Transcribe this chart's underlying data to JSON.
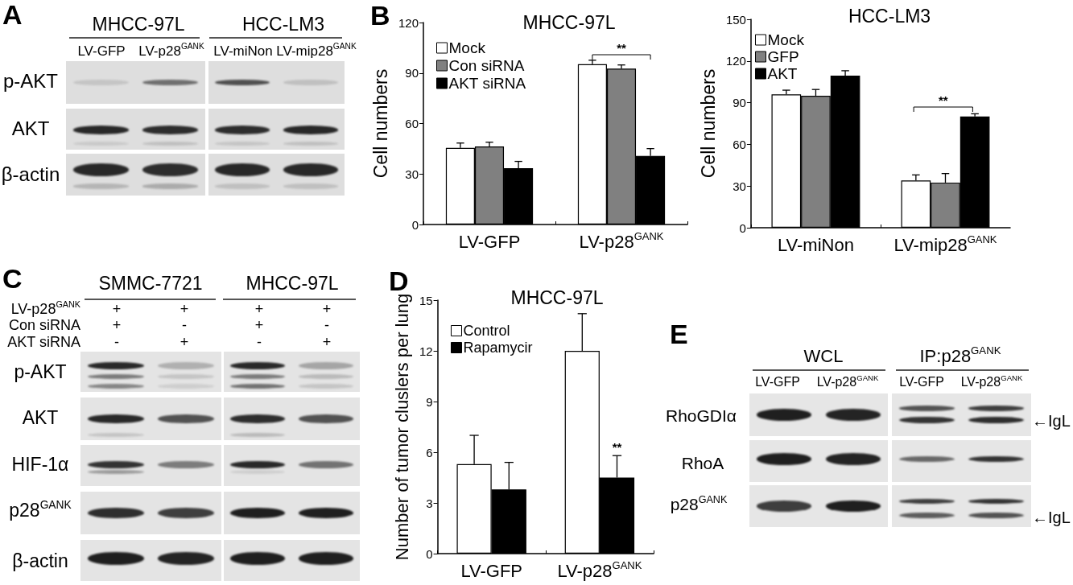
{
  "chart_data": [
    {
      "type": "other",
      "annotations": [
        "A",
        "MHCC-97L",
        "HCC-LM3",
        "LV-GFP",
        "LV-p28$^{GANK}$",
        "LV-miNon",
        "LV-mip28$^{GANK}$",
        "p-AKT",
        "AKT",
        "β-actin"
      ]
    },
    {
      "type": "bar",
      "title": "MHCC-97L",
      "ylabel": "Cell numbers",
      "categories": [
        "LV-GFP",
        "LV-p28$^{GANK}$"
      ],
      "ylim": [
        0,
        120
      ],
      "yticks": [
        0,
        30,
        60,
        90,
        120
      ],
      "legend": "top left",
      "series": [
        {
          "name": "Mock",
          "color": "#ffffff",
          "values": [
            45.5,
            95.2
          ],
          "errors": [
            [
              45.5,
              48.4
            ],
            [
              95.2,
              97.6
            ]
          ]
        },
        {
          "name": "Con siRNA",
          "color": "#808080",
          "values": [
            46.4,
            92.6
          ],
          "errors": [
            [
              46.4,
              48.9
            ],
            [
              92.6,
              94.8
            ]
          ]
        },
        {
          "name": "AKT siRNA",
          "color": "#000000",
          "values": [
            33.5,
            40.8
          ],
          "errors": [
            [
              33.5,
              37.5
            ],
            [
              40.8,
              45.1
            ]
          ]
        }
      ],
      "annotations": [
        "B",
        "**"
      ]
    },
    {
      "type": "bar",
      "title": "HCC-LM3",
      "ylabel": "Cell numbers",
      "categories": [
        "LV-miNon",
        "LV-mip28$^{GANK}$"
      ],
      "ylim": [
        0,
        150
      ],
      "yticks": [
        0,
        30,
        60,
        90,
        120,
        150
      ],
      "legend": "top left",
      "series": [
        {
          "name": "Mock",
          "color": "#ffffff",
          "values": [
            96,
            34
          ],
          "errors": [
            [
              96,
              99
            ],
            [
              34,
              38
            ]
          ]
        },
        {
          "name": "GFP",
          "color": "#808080",
          "values": [
            95,
            32.5
          ],
          "errors": [
            [
              95,
              99.5
            ],
            [
              32.5,
              39
            ]
          ]
        },
        {
          "name": "AKT",
          "color": "#000000",
          "values": [
            109.5,
            80
          ],
          "errors": [
            [
              109.5,
              113
            ],
            [
              80,
              82
            ]
          ]
        }
      ],
      "annotations": [
        "**"
      ]
    },
    {
      "type": "other",
      "annotations": [
        "C",
        "SMMC-7721",
        "MHCC-97L",
        "LV-p28$^{GANK}$",
        "+",
        "+",
        "+",
        "+",
        "Con siRNA",
        "+",
        "-",
        "+",
        "-",
        "AKT siRNA",
        "-",
        "+",
        "-",
        "+",
        "p-AKT",
        "AKT",
        "HIF-1α",
        "p28$^{GANK}$",
        "β-actin"
      ]
    },
    {
      "type": "bar",
      "title": "MHCC-97L",
      "ylabel": "Number of tumor cluslers per lung",
      "categories": [
        "LV-GFP",
        "LV-p28$^{GANK}$"
      ],
      "ylim": [
        0,
        15
      ],
      "yticks": [
        0,
        3,
        6,
        9,
        12,
        15
      ],
      "legend": "top left",
      "series": [
        {
          "name": "Control",
          "color": "#ffffff",
          "values": [
            5.3,
            12.0
          ],
          "errors": [
            [
              5.3,
              7.0
            ],
            [
              12.0,
              14.2
            ]
          ]
        },
        {
          "name": "Rapamycir",
          "color": "#000000",
          "values": [
            3.8,
            4.5
          ],
          "errors": [
            [
              3.8,
              5.4
            ],
            [
              4.5,
              5.8
            ]
          ],
          "value_labels": [
            null,
            "**"
          ]
        }
      ],
      "annotations": [
        "D"
      ]
    },
    {
      "type": "other",
      "annotations": [
        "E",
        "WCL",
        "IP:p28$^{GANK}$",
        "LV-GFP",
        "LV-p28$^{GANK}$",
        "LV-GFP",
        "LV-p28$^{GANK}$",
        "RhoGDIα",
        "RhoA",
        "p28$^{GANK}$",
        "←IgL",
        "←IgL"
      ]
    }
  ]
}
